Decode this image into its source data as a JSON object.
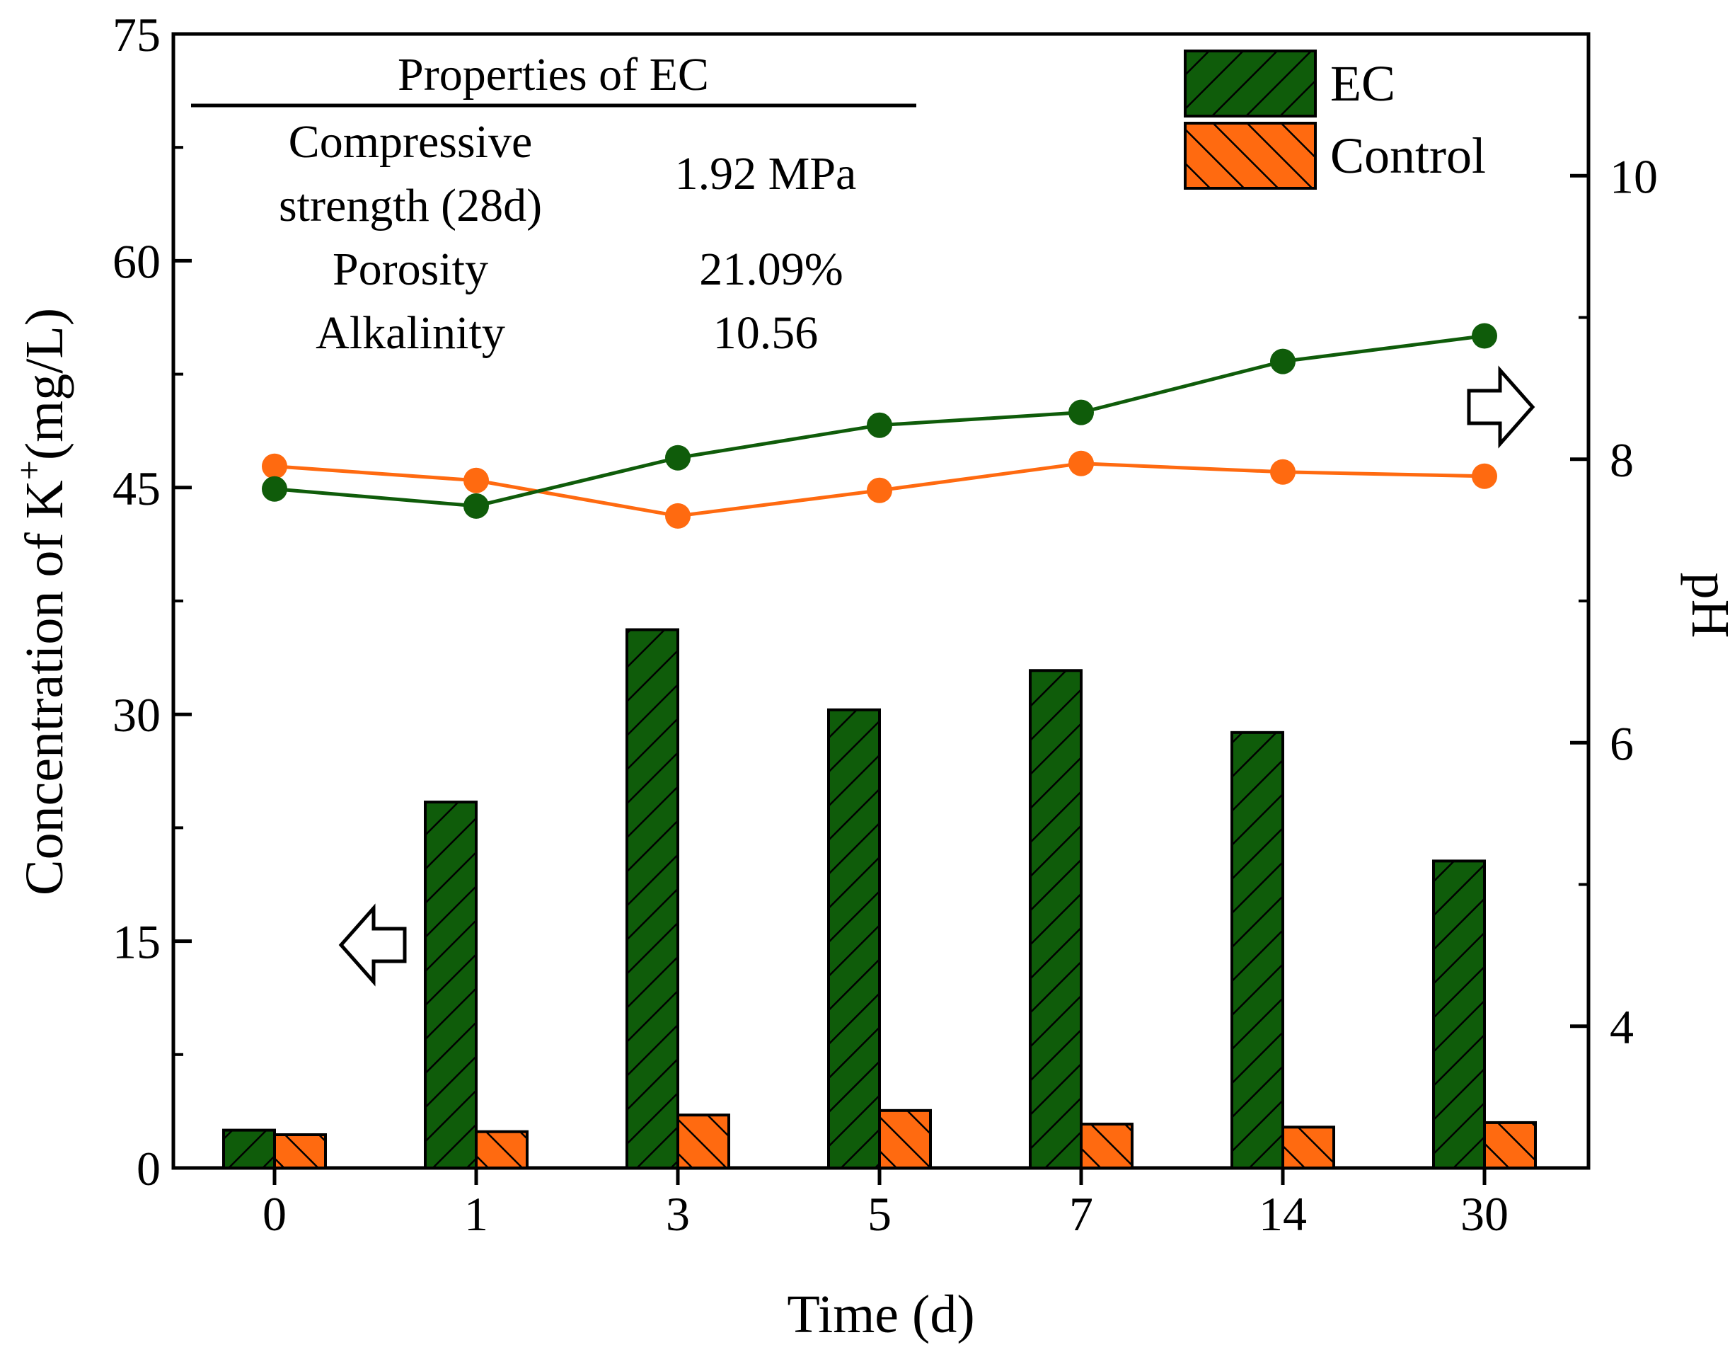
{
  "colors": {
    "ec": "#0f5c0a",
    "control": "#ff6a10",
    "hatch": "#000000",
    "axis": "#000000"
  },
  "chart_data": {
    "type": "bar",
    "categories": [
      "0",
      "1",
      "3",
      "5",
      "7",
      "14",
      "30"
    ],
    "xlabel": "Time (d)",
    "ylabel": "Concentration of K",
    "ylabel_superscript": "+",
    "ylabel_unit": "(mg/L)",
    "y2label": "pH",
    "ylim": [
      0,
      75
    ],
    "yticks": [
      0,
      15,
      30,
      45,
      60,
      75
    ],
    "y2lim": [
      3,
      11
    ],
    "y2ticks": [
      4,
      6,
      8,
      10
    ],
    "series": [
      {
        "name": "EC",
        "type": "bar",
        "axis": "left",
        "values": [
          2.5,
          24.2,
          35.6,
          30.3,
          32.9,
          28.8,
          20.3
        ]
      },
      {
        "name": "Control",
        "type": "bar",
        "axis": "left",
        "values": [
          2.2,
          2.4,
          3.5,
          3.8,
          2.9,
          2.7,
          3.0
        ]
      },
      {
        "name": "EC",
        "type": "line",
        "axis": "right",
        "values": [
          7.79,
          7.67,
          8.01,
          8.24,
          8.33,
          8.69,
          8.87
        ]
      },
      {
        "name": "Control",
        "type": "line",
        "axis": "right",
        "values": [
          7.95,
          7.85,
          7.6,
          7.78,
          7.97,
          7.91,
          7.88
        ]
      }
    ],
    "legend": {
      "placement": "top-right",
      "entries": [
        "EC",
        "Control"
      ]
    },
    "grid": false,
    "annotations": {
      "arrow_left": "points to left axis (bars)",
      "arrow_right": "points to right axis (pH lines)"
    }
  },
  "properties_table": {
    "title": "Properties of EC",
    "rows": [
      {
        "label_lines": [
          "Compressive",
          "strength (28d)"
        ],
        "value": "1.92 MPa"
      },
      {
        "label_lines": [
          "Porosity"
        ],
        "value": "21.09%"
      },
      {
        "label_lines": [
          "Alkalinity"
        ],
        "value": "10.56"
      }
    ]
  }
}
